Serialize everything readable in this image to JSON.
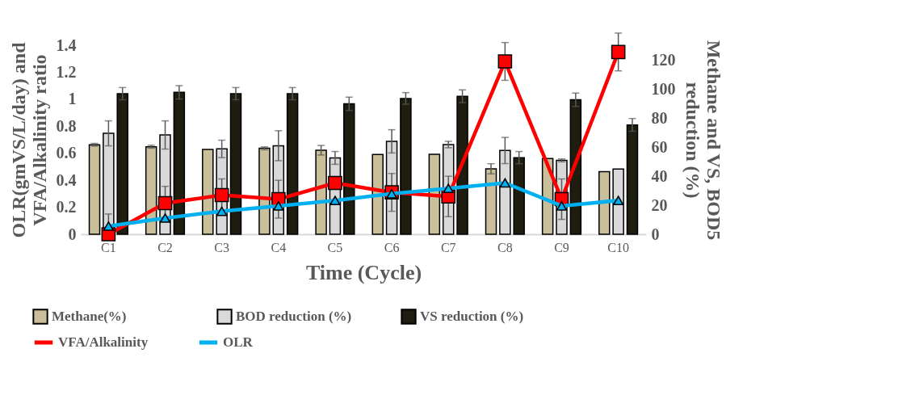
{
  "chart_data": {
    "type": "bar",
    "xlabel": "Time (Cycle)",
    "ylabel": "OLR(gmVS/L/day) and\nVFA/Alkalinity ratio",
    "y2label": "Methane and VS, BOD5\nreduction (%)",
    "categories": [
      "C1",
      "C2",
      "C3",
      "C4",
      "C5",
      "C6",
      "C7",
      "C8",
      "C9",
      "C10"
    ],
    "ylim": [
      0,
      1.4
    ],
    "yticks": [
      0,
      0.2,
      0.4,
      0.6,
      0.8,
      1,
      1.2,
      1.4
    ],
    "y2lim": [
      0,
      130
    ],
    "y2ticks": [
      0,
      20,
      40,
      60,
      80,
      100,
      120
    ],
    "grid": false,
    "legend": "bottom",
    "series": [
      {
        "name": "Methane(%)",
        "axis": "y2",
        "color": "#c9bf9a",
        "values": [
          61.5,
          60.2,
          58.3,
          59.1,
          57.8,
          54.9,
          55,
          45,
          52.1,
          43.1
        ],
        "errors": [
          1,
          1,
          null,
          1,
          3.3,
          null,
          null,
          3.5,
          null,
          null
        ]
      },
      {
        "name": "BOD reduction (%)",
        "axis": "y2",
        "color": "#d9d9d9",
        "values": [
          69.4,
          68.3,
          58.7,
          60.9,
          52.5,
          63.9,
          61.7,
          57.6,
          50.8,
          44.8
        ],
        "errors": [
          8.6,
          9.7,
          6,
          10.3,
          4.4,
          8,
          2.2,
          9,
          1,
          null
        ]
      },
      {
        "name": "VS reduction (%)",
        "axis": "y2",
        "color": "#1f1c10",
        "values": [
          96.7,
          97.6,
          96.7,
          96.7,
          89.7,
          93.4,
          94.9,
          52.7,
          92.5,
          75.2
        ],
        "errors": [
          4.2,
          4.6,
          4.2,
          4.2,
          4.6,
          4,
          4.4,
          4.2,
          4.6,
          4.4
        ]
      },
      {
        "name": "VFA/Alkalinity",
        "type": "line",
        "axis": "y",
        "color": "#ff0000",
        "marker": "square",
        "values": [
          0,
          0.23,
          0.29,
          0.26,
          0.38,
          0.31,
          0.28,
          1.28,
          0.26,
          1.35
        ],
        "errors": [
          [
            0,
            0.15
          ],
          0.125,
          0.12,
          0.14,
          null,
          0.14,
          0.15,
          0.14,
          0.15,
          0.14
        ]
      },
      {
        "name": "OLR",
        "type": "line",
        "axis": "y",
        "color": "#00b0f0",
        "marker": "triangle",
        "values": [
          0.06,
          0.12,
          0.17,
          0.21,
          0.25,
          0.3,
          0.34,
          0.38,
          0.21,
          0.25
        ]
      }
    ]
  }
}
